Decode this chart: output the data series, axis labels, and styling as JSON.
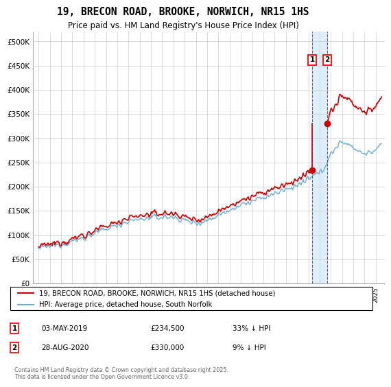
{
  "title": "19, BRECON ROAD, BROOKE, NORWICH, NR15 1HS",
  "subtitle": "Price paid vs. HM Land Registry's House Price Index (HPI)",
  "legend_line1": "19, BRECON ROAD, BROOKE, NORWICH, NR15 1HS (detached house)",
  "legend_line2": "HPI: Average price, detached house, South Norfolk",
  "marker1_date": "03-MAY-2019",
  "marker1_price": "£234,500",
  "marker1_hpi": "33% ↓ HPI",
  "marker2_date": "28-AUG-2020",
  "marker2_price": "£330,000",
  "marker2_hpi": "9% ↓ HPI",
  "marker1_x": 2019.33,
  "marker2_x": 2020.66,
  "sale1_price": 234500,
  "sale2_price": 330000,
  "footnote": "Contains HM Land Registry data © Crown copyright and database right 2025.\nThis data is licensed under the Open Government Licence v3.0.",
  "hpi_color": "#6baed6",
  "property_color": "#cc0000",
  "marker_color": "#cc0000",
  "vband_color": "#ddeeff",
  "background_color": "#ffffff",
  "grid_color": "#cccccc",
  "ylim": [
    0,
    520000
  ],
  "yticks": [
    0,
    50000,
    100000,
    150000,
    200000,
    250000,
    300000,
    350000,
    400000,
    450000,
    500000
  ],
  "xlim": [
    1994.5,
    2025.8
  ]
}
